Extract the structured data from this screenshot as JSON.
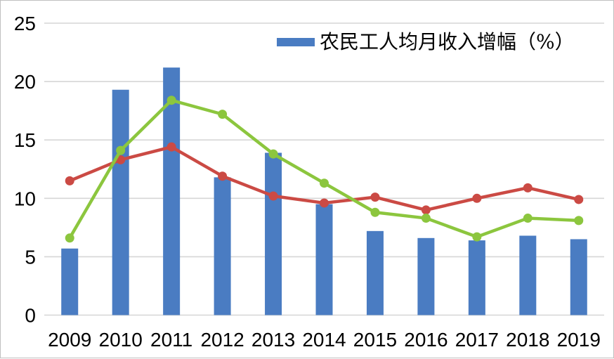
{
  "window": {
    "background": "#ffffff",
    "border_color": "#bfbfbf"
  },
  "chart_data": {
    "type": "bar",
    "subtype": "bar-line-combo",
    "title": "",
    "categories": [
      "2009",
      "2010",
      "2011",
      "2012",
      "2013",
      "2014",
      "2015",
      "2016",
      "2017",
      "2018",
      "2019"
    ],
    "series": [
      {
        "id": "migrant-worker-income-growth-bars",
        "name": "农民工人均月收入增幅（%）",
        "type": "bar",
        "color": "#4a7cc2",
        "in_legend": true,
        "values": [
          5.7,
          19.3,
          21.2,
          11.8,
          13.9,
          9.5,
          7.2,
          6.6,
          6.4,
          6.8,
          6.5
        ]
      },
      {
        "id": "red-line-series",
        "name": "",
        "type": "line",
        "color": "#cb4a44",
        "in_legend": false,
        "values": [
          11.5,
          13.3,
          14.4,
          11.9,
          10.2,
          9.6,
          10.1,
          9.0,
          10.0,
          10.9,
          9.9
        ]
      },
      {
        "id": "green-line-series",
        "name": "",
        "type": "line",
        "color": "#8cc63e",
        "in_legend": false,
        "values": [
          6.6,
          14.1,
          18.4,
          17.2,
          13.8,
          11.3,
          8.8,
          8.3,
          6.7,
          8.3,
          8.1
        ]
      }
    ],
    "xlabel": "",
    "ylabel": "",
    "ylim": [
      0,
      25
    ],
    "yticks": [
      0,
      5,
      10,
      15,
      20,
      25
    ],
    "ytick_labels": [
      "0",
      "5",
      "10",
      "15",
      "20",
      "25"
    ],
    "grid": true,
    "gridline_color": "#d6d6d6",
    "axis_text_color": "#000000",
    "legend_position": "top-center"
  }
}
